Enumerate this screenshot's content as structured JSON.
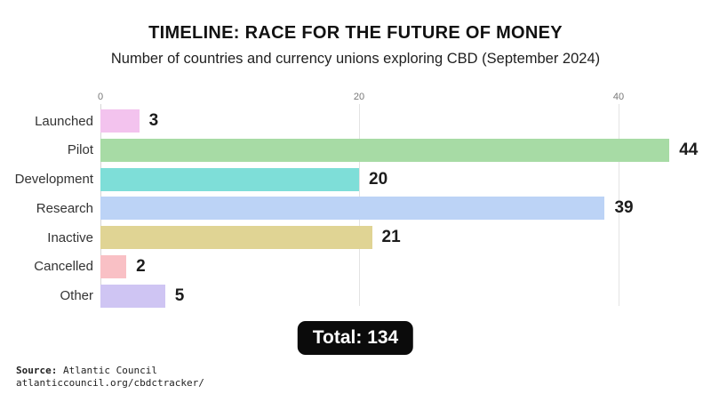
{
  "header": {
    "title": "TIMELINE: RACE FOR THE FUTURE OF MONEY",
    "subtitle": "Number of countries and currency unions exploring CBD (September 2024)"
  },
  "chart_data": {
    "type": "bar",
    "orientation": "horizontal",
    "title": "TIMELINE: RACE FOR THE FUTURE OF MONEY",
    "subtitle": "Number of countries and currency unions exploring CBD (September 2024)",
    "categories": [
      "Launched",
      "Pilot",
      "Development",
      "Research",
      "Inactive",
      "Cancelled",
      "Other"
    ],
    "values": [
      3,
      44,
      20,
      39,
      21,
      2,
      5
    ],
    "bar_colors": [
      "#f3c3ee",
      "#a7dba5",
      "#7eded8",
      "#bcd3f6",
      "#e0d494",
      "#f9c0c5",
      "#cfc5f3"
    ],
    "x_ticks": [
      0,
      20,
      40
    ],
    "xlim": [
      0,
      45
    ],
    "grid": true,
    "value_labels": true,
    "total": 134
  },
  "total_badge": "Total: 134",
  "source": {
    "label": "Source:",
    "name": " Atlantic Council",
    "url": "atlanticcouncil.org/cbdctracker/"
  },
  "colors": {
    "background": "#ffffff",
    "title_text": "#111111",
    "category_text": "#333333",
    "value_text": "#1c1c1c",
    "tick_text": "#777777",
    "gridline": "#e3e3e3",
    "axis_line": "#d6d6d6",
    "total_bg": "#0b0b0b",
    "total_text": "#ffffff"
  }
}
